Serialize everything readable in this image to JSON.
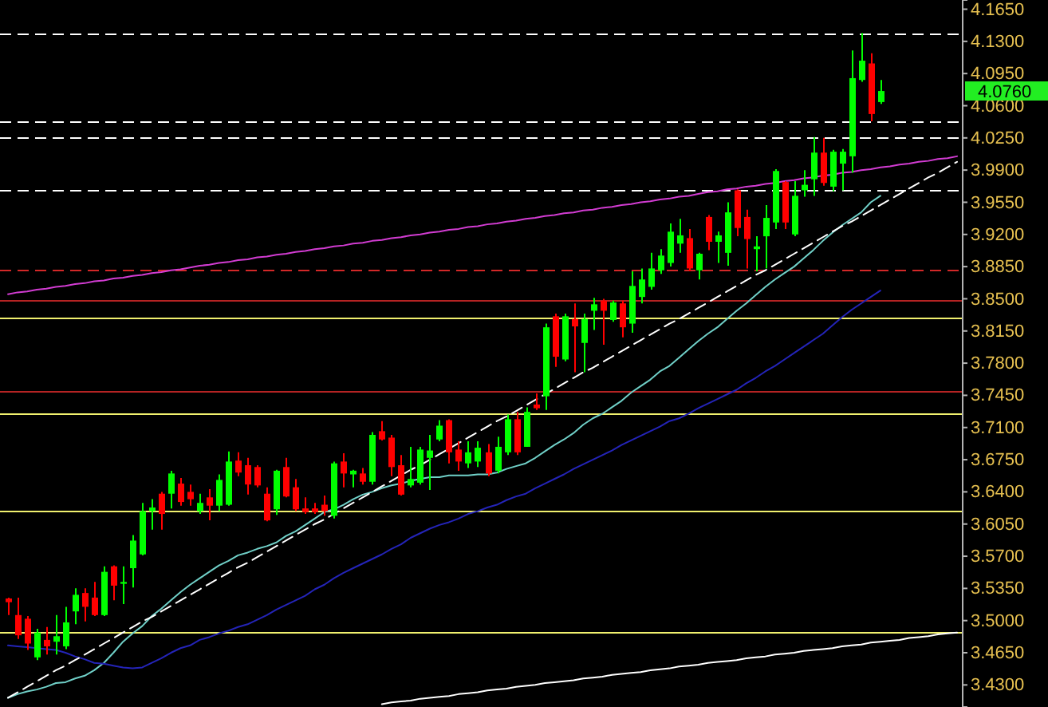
{
  "chart_data": {
    "type": "candlestick",
    "categories": [
      null,
      null,
      null,
      null,
      null,
      null,
      null,
      null,
      null,
      null,
      null,
      null,
      null,
      null,
      null,
      null,
      null,
      null,
      null,
      null,
      null,
      null,
      null,
      null,
      null,
      null,
      null,
      null,
      null,
      null,
      null,
      null,
      null,
      null,
      null,
      null,
      null,
      null,
      null,
      null,
      null,
      null,
      null,
      null,
      null,
      null,
      null,
      null,
      null,
      null,
      null,
      null,
      null,
      null,
      null,
      null,
      null,
      null,
      null,
      null,
      null,
      null,
      null,
      null,
      null,
      null,
      null,
      null,
      null,
      null,
      null,
      null,
      null,
      null,
      null,
      null,
      null,
      null,
      null,
      null,
      null,
      null,
      null,
      null,
      null,
      null,
      null,
      null,
      null,
      null,
      null,
      null,
      null,
      null,
      null,
      null,
      null,
      null,
      null,
      null
    ],
    "ohlc": [
      [
        3.524,
        3.525,
        3.506,
        3.52
      ],
      [
        3.506,
        3.525,
        3.48,
        3.484
      ],
      [
        3.502,
        3.505,
        3.468,
        3.475
      ],
      [
        3.46,
        3.491,
        3.457,
        3.487
      ],
      [
        3.479,
        3.493,
        3.463,
        3.472
      ],
      [
        3.477,
        3.506,
        3.463,
        3.483
      ],
      [
        3.472,
        3.515,
        3.469,
        3.498
      ],
      [
        3.51,
        3.535,
        3.496,
        3.528
      ],
      [
        3.53,
        3.535,
        3.499,
        3.515
      ],
      [
        3.525,
        3.542,
        3.505,
        3.506
      ],
      [
        3.506,
        3.559,
        3.505,
        3.553
      ],
      [
        3.559,
        3.56,
        3.522,
        3.538
      ],
      [
        3.54,
        3.559,
        3.518,
        3.542
      ],
      [
        3.557,
        3.593,
        3.536,
        3.587
      ],
      [
        3.572,
        3.628,
        3.571,
        3.619
      ],
      [
        3.619,
        3.632,
        3.599,
        3.623
      ],
      [
        3.638,
        3.64,
        3.599,
        3.616
      ],
      [
        3.638,
        3.663,
        3.622,
        3.66
      ],
      [
        3.649,
        3.655,
        3.625,
        3.629
      ],
      [
        3.64,
        3.648,
        3.625,
        3.632
      ],
      [
        3.619,
        3.638,
        3.616,
        3.628
      ],
      [
        3.634,
        3.643,
        3.609,
        3.625
      ],
      [
        3.625,
        3.659,
        3.619,
        3.653
      ],
      [
        3.626,
        3.684,
        3.625,
        3.673
      ],
      [
        3.674,
        3.683,
        3.657,
        3.661
      ],
      [
        3.669,
        3.677,
        3.637,
        3.648
      ],
      [
        3.667,
        3.669,
        3.645,
        3.647
      ],
      [
        3.638,
        3.645,
        3.608,
        3.609
      ],
      [
        3.621,
        3.664,
        3.615,
        3.663
      ],
      [
        3.667,
        3.677,
        3.634,
        3.635
      ],
      [
        3.645,
        3.654,
        3.619,
        3.621
      ],
      [
        3.622,
        3.634,
        3.616,
        3.618
      ],
      [
        3.622,
        3.628,
        3.616,
        3.618
      ],
      [
        3.626,
        3.636,
        3.614,
        3.619
      ],
      [
        3.614,
        3.673,
        3.611,
        3.671
      ],
      [
        3.673,
        3.682,
        3.645,
        3.66
      ],
      [
        3.659,
        3.664,
        3.645,
        3.663
      ],
      [
        3.66,
        3.666,
        3.648,
        3.651
      ],
      [
        3.651,
        3.705,
        3.648,
        3.702
      ],
      [
        3.706,
        3.717,
        3.696,
        3.697
      ],
      [
        3.699,
        3.702,
        3.657,
        3.667
      ],
      [
        3.669,
        3.68,
        3.636,
        3.637
      ],
      [
        3.647,
        3.689,
        3.645,
        3.654
      ],
      [
        3.65,
        3.689,
        3.648,
        3.686
      ],
      [
        3.677,
        3.702,
        3.642,
        3.685
      ],
      [
        3.697,
        3.718,
        3.695,
        3.712
      ],
      [
        3.718,
        3.719,
        3.671,
        3.683
      ],
      [
        3.686,
        3.695,
        3.663,
        3.673
      ],
      [
        3.671,
        3.695,
        3.666,
        3.683
      ],
      [
        3.673,
        3.695,
        3.667,
        3.688
      ],
      [
        3.683,
        3.692,
        3.657,
        3.66
      ],
      [
        3.663,
        3.7,
        3.66,
        3.689
      ],
      [
        3.683,
        3.724,
        3.68,
        3.719
      ],
      [
        3.719,
        3.727,
        3.68,
        3.683
      ],
      [
        3.689,
        3.732,
        3.689,
        3.727
      ],
      [
        3.735,
        3.747,
        3.729,
        3.731
      ],
      [
        3.744,
        3.823,
        3.729,
        3.819
      ],
      [
        3.831,
        3.834,
        3.776,
        3.787
      ],
      [
        3.784,
        3.834,
        3.782,
        3.831
      ],
      [
        3.828,
        3.845,
        3.77,
        3.82
      ],
      [
        3.802,
        3.834,
        3.77,
        3.828
      ],
      [
        3.837,
        3.851,
        3.816,
        3.844
      ],
      [
        3.848,
        3.85,
        3.8,
        3.837
      ],
      [
        3.827,
        3.848,
        3.825,
        3.846
      ],
      [
        3.845,
        3.848,
        3.808,
        3.819
      ],
      [
        3.823,
        3.88,
        3.813,
        3.864
      ],
      [
        3.852,
        3.883,
        3.845,
        3.871
      ],
      [
        3.863,
        3.9,
        3.86,
        3.883
      ],
      [
        3.881,
        3.904,
        3.877,
        3.897
      ],
      [
        3.889,
        3.932,
        3.885,
        3.923
      ],
      [
        3.91,
        3.937,
        3.9,
        3.919
      ],
      [
        3.916,
        3.926,
        3.88,
        3.883
      ],
      [
        3.881,
        3.9,
        3.871,
        3.899
      ],
      [
        3.939,
        3.941,
        3.903,
        3.912
      ],
      [
        3.912,
        3.923,
        3.889,
        3.919
      ],
      [
        3.9,
        3.955,
        3.886,
        3.944
      ],
      [
        3.968,
        3.969,
        3.918,
        3.927
      ],
      [
        3.939,
        3.947,
        3.883,
        3.915
      ],
      [
        3.904,
        3.918,
        3.88,
        3.907
      ],
      [
        3.918,
        3.952,
        3.883,
        3.938
      ],
      [
        3.933,
        3.991,
        3.926,
        3.989
      ],
      [
        3.977,
        3.978,
        3.926,
        3.933
      ],
      [
        3.92,
        3.978,
        3.918,
        3.962
      ],
      [
        3.968,
        3.99,
        3.961,
        3.974
      ],
      [
        3.98,
        4.026,
        3.962,
        4.009
      ],
      [
        4.009,
        4.025,
        3.973,
        3.976
      ],
      [
        3.972,
        4.012,
        3.967,
        4.01
      ],
      [
        3.997,
        4.013,
        3.968,
        4.01
      ],
      [
        4.005,
        4.12,
        3.987,
        4.09
      ],
      [
        4.088,
        4.139,
        4.086,
        4.109
      ],
      [
        4.106,
        4.117,
        4.043,
        4.051
      ],
      [
        4.064,
        4.088,
        4.062,
        4.076
      ],
      null,
      null,
      null,
      null,
      null,
      null,
      null,
      null
    ],
    "colors": [
      "#ff0000",
      "#ff0000",
      "#ff0000",
      "#00ff00",
      "#ff0000",
      "#00ff00",
      "#00ff00",
      "#00ff00",
      "#ff0000",
      "#ff0000",
      "#00ff00",
      "#ff0000",
      "#00ff00",
      "#00ff00",
      "#00ff00",
      "#00ff00",
      "#ff0000",
      "#00ff00",
      "#ff0000",
      "#ff0000",
      "#00ff00",
      "#ff0000",
      "#00ff00",
      "#00ff00",
      "#ff0000",
      "#ff0000",
      "#ff0000",
      "#ff0000",
      "#00ff00",
      "#ff0000",
      "#ff0000",
      "#ff0000",
      "#ff0000",
      "#ff0000",
      "#00ff00",
      "#ff0000",
      "#00ff00",
      "#ff0000",
      "#00ff00",
      "#ff0000",
      "#ff0000",
      "#ff0000",
      "#00ff00",
      "#00ff00",
      "#00ff00",
      "#00ff00",
      "#ff0000",
      "#ff0000",
      "#00ff00",
      "#00ff00",
      "#ff0000",
      "#00ff00",
      "#00ff00",
      "#ff0000",
      "#00ff00",
      "#ff0000",
      "#00ff00",
      "#ff0000",
      "#00ff00",
      "#ff0000",
      "#00ff00",
      "#00ff00",
      "#ff0000",
      "#00ff00",
      "#ff0000",
      "#00ff00",
      "#00ff00",
      "#00ff00",
      "#00ff00",
      "#00ff00",
      "#00ff00",
      "#ff0000",
      "#00ff00",
      "#ff0000",
      "#00ff00",
      "#00ff00",
      "#ff0000",
      "#ff0000",
      "#00ff00",
      "#00ff00",
      "#00ff00",
      "#ff0000",
      "#00ff00",
      "#00ff00",
      "#00ff00",
      "#ff0000",
      "#00ff00",
      "#00ff00",
      "#00ff00",
      "#00ff00",
      "#ff0000",
      "#00ff00",
      null,
      null,
      null,
      null,
      null,
      null,
      null,
      null
    ],
    "series": [
      {
        "type": "line",
        "color": "#70d0c8",
        "values": [
          3.416,
          3.42,
          3.423,
          3.425,
          3.428,
          3.432,
          3.433,
          3.437,
          3.44,
          3.446,
          3.454,
          3.465,
          3.477,
          3.486,
          3.494,
          3.505,
          3.513,
          3.522,
          3.531,
          3.539,
          3.546,
          3.553,
          3.56,
          3.565,
          3.571,
          3.574,
          3.578,
          3.581,
          3.585,
          3.592,
          3.597,
          3.604,
          3.611,
          3.618,
          3.621,
          3.626,
          3.632,
          3.637,
          3.64,
          3.644,
          3.647,
          3.649,
          3.652,
          3.654,
          3.656,
          3.656,
          3.658,
          3.658,
          3.658,
          3.659,
          3.659,
          3.661,
          3.665,
          3.668,
          3.671,
          3.677,
          3.684,
          3.691,
          3.697,
          3.704,
          3.713,
          3.72,
          3.725,
          3.732,
          3.739,
          3.748,
          3.755,
          3.762,
          3.771,
          3.777,
          3.786,
          3.795,
          3.804,
          3.812,
          3.819,
          3.828,
          3.837,
          3.845,
          3.854,
          3.863,
          3.871,
          3.878,
          3.885,
          3.894,
          3.903,
          3.913,
          3.922,
          3.93,
          3.937,
          3.944,
          3.955,
          3.962,
          null,
          null,
          null,
          null,
          null,
          null,
          null,
          null
        ]
      },
      {
        "type": "line",
        "color": "#2424b8",
        "values": [
          3.473,
          3.472,
          3.471,
          3.47,
          3.469,
          3.468,
          3.465,
          3.461,
          3.458,
          3.454,
          3.453,
          3.451,
          3.449,
          3.448,
          3.449,
          3.454,
          3.459,
          3.465,
          3.47,
          3.473,
          3.479,
          3.482,
          3.486,
          3.489,
          3.493,
          3.496,
          3.501,
          3.506,
          3.512,
          3.517,
          3.522,
          3.527,
          3.534,
          3.539,
          3.546,
          3.552,
          3.557,
          3.562,
          3.567,
          3.572,
          3.578,
          3.583,
          3.59,
          3.595,
          3.6,
          3.604,
          3.607,
          3.611,
          3.616,
          3.619,
          3.623,
          3.626,
          3.631,
          3.635,
          3.638,
          3.644,
          3.649,
          3.654,
          3.659,
          3.665,
          3.67,
          3.675,
          3.68,
          3.685,
          3.691,
          3.696,
          3.701,
          3.706,
          3.711,
          3.717,
          3.72,
          3.725,
          3.731,
          3.736,
          3.741,
          3.746,
          3.751,
          3.758,
          3.764,
          3.771,
          3.777,
          3.784,
          3.791,
          3.798,
          3.805,
          3.812,
          3.821,
          3.83,
          3.838,
          3.845,
          3.852,
          3.859,
          null,
          null,
          null,
          null,
          null,
          null,
          null,
          null
        ]
      },
      {
        "type": "line",
        "color": "#d23cd2",
        "values": [
          3.855,
          3.857,
          3.858,
          3.86,
          3.861,
          3.863,
          3.864,
          3.866,
          3.867,
          3.869,
          3.87,
          3.872,
          3.873,
          3.875,
          3.876,
          3.878,
          3.879,
          3.881,
          3.882,
          3.884,
          3.886,
          3.887,
          3.889,
          3.89,
          3.892,
          3.893,
          3.895,
          3.896,
          3.898,
          3.899,
          3.901,
          3.902,
          3.904,
          3.905,
          3.907,
          3.908,
          3.91,
          3.911,
          3.913,
          3.914,
          3.916,
          3.917,
          3.919,
          3.92,
          3.922,
          3.923,
          3.925,
          3.926,
          3.928,
          3.929,
          3.931,
          3.932,
          3.934,
          3.935,
          3.937,
          3.938,
          3.94,
          3.941,
          3.943,
          3.944,
          3.946,
          3.947,
          3.949,
          3.95,
          3.952,
          3.953,
          3.955,
          3.956,
          3.958,
          3.959,
          3.961,
          3.962,
          3.964,
          3.966,
          3.967,
          3.969,
          3.97,
          3.972,
          3.973,
          3.975,
          3.976,
          3.978,
          3.979,
          3.981,
          3.982,
          3.984,
          3.985,
          3.987,
          3.988,
          3.99,
          3.991,
          3.993,
          3.994,
          3.996,
          3.997,
          3.999,
          4.0,
          4.002,
          4.003,
          4.005
        ]
      },
      {
        "type": "line",
        "color": "#ffffff",
        "line_style": "dashed",
        "values": [
          3.416,
          3.422,
          3.428,
          3.434,
          3.44,
          3.446,
          3.451,
          3.457,
          3.463,
          3.469,
          3.475,
          3.481,
          3.487,
          3.493,
          3.499,
          3.504,
          3.51,
          3.516,
          3.522,
          3.528,
          3.534,
          3.54,
          3.546,
          3.552,
          3.558,
          3.563,
          3.569,
          3.575,
          3.581,
          3.587,
          3.593,
          3.599,
          3.605,
          3.61,
          3.616,
          3.622,
          3.628,
          3.634,
          3.64,
          3.646,
          3.652,
          3.658,
          3.664,
          3.669,
          3.675,
          3.681,
          3.687,
          3.693,
          3.699,
          3.705,
          3.711,
          3.717,
          3.722,
          3.728,
          3.734,
          3.74,
          3.746,
          3.752,
          3.758,
          3.764,
          3.77,
          3.775,
          3.781,
          3.787,
          3.793,
          3.799,
          3.805,
          3.811,
          3.817,
          3.823,
          3.828,
          3.834,
          3.84,
          3.846,
          3.852,
          3.858,
          3.864,
          3.87,
          3.876,
          3.881,
          3.887,
          3.893,
          3.899,
          3.905,
          3.911,
          3.917,
          3.923,
          3.929,
          3.934,
          3.94,
          3.946,
          3.952,
          3.958,
          3.964,
          3.97,
          3.976,
          3.982,
          3.987,
          3.993,
          3.999
        ]
      },
      {
        "type": "line",
        "color": "#ffffff",
        "values": [
          null,
          null,
          null,
          null,
          null,
          null,
          null,
          null,
          null,
          null,
          null,
          null,
          null,
          null,
          null,
          null,
          null,
          null,
          null,
          null,
          null,
          null,
          null,
          null,
          null,
          null,
          null,
          null,
          null,
          null,
          null,
          null,
          null,
          null,
          null,
          null,
          null,
          null,
          null,
          3.409,
          3.411,
          3.412,
          3.413,
          3.415,
          3.416,
          3.417,
          3.418,
          3.42,
          3.421,
          3.422,
          3.424,
          3.425,
          3.426,
          3.428,
          3.429,
          3.43,
          3.432,
          3.433,
          3.434,
          3.435,
          3.437,
          3.438,
          3.439,
          3.441,
          3.442,
          3.443,
          3.444,
          3.446,
          3.447,
          3.448,
          3.45,
          3.451,
          3.452,
          3.454,
          3.455,
          3.456,
          3.457,
          3.459,
          3.46,
          3.461,
          3.463,
          3.464,
          3.465,
          3.467,
          3.468,
          3.469,
          3.47,
          3.472,
          3.473,
          3.474,
          3.476,
          3.477,
          3.478,
          3.479,
          3.481,
          3.482,
          3.483,
          3.485,
          3.486,
          3.487
        ]
      }
    ],
    "ylim": [
      3.406,
      4.175
    ],
    "yticks": [
      {
        "value": 3.43,
        "label": "3.4300"
      },
      {
        "value": 3.465,
        "label": "3.4650"
      },
      {
        "value": 3.5,
        "label": "3.5000"
      },
      {
        "value": 3.535,
        "label": "3.5350"
      },
      {
        "value": 3.57,
        "label": "3.5700"
      },
      {
        "value": 3.605,
        "label": "3.6050"
      },
      {
        "value": 3.64,
        "label": "3.6400"
      },
      {
        "value": 3.675,
        "label": "3.6750"
      },
      {
        "value": 3.71,
        "label": "3.7100"
      },
      {
        "value": 3.745,
        "label": "3.7450"
      },
      {
        "value": 3.78,
        "label": "3.7800"
      },
      {
        "value": 3.815,
        "label": "3.8150"
      },
      {
        "value": 3.85,
        "label": "3.8500"
      },
      {
        "value": 3.885,
        "label": "3.8850"
      },
      {
        "value": 3.92,
        "label": "3.9200"
      },
      {
        "value": 3.955,
        "label": "3.9550"
      },
      {
        "value": 3.99,
        "label": "3.9900"
      },
      {
        "value": 4.025,
        "label": "4.0250"
      },
      {
        "value": 4.06,
        "label": "4.0600"
      },
      {
        "value": 4.095,
        "label": "4.0950"
      },
      {
        "value": 4.13,
        "label": "4.1300"
      },
      {
        "value": 4.165,
        "label": "4.1650"
      }
    ],
    "tick_labels": "y",
    "ref_lines": [
      {
        "axis": "y",
        "value": 4.139,
        "color": "#ffffff",
        "line_style": "dashed"
      },
      {
        "axis": "y",
        "value": 4.043,
        "color": "#ffffff",
        "line_style": "dashed"
      },
      {
        "axis": "y",
        "value": 4.026,
        "color": "#ffffff",
        "line_style": "dashed"
      },
      {
        "axis": "y",
        "value": 3.969,
        "color": "#ffffff",
        "line_style": "dashed"
      },
      {
        "axis": "y",
        "value": 3.882,
        "color": "#d22828",
        "line_style": "dashed"
      },
      {
        "axis": "y",
        "value": 3.849,
        "color": "#b42323"
      },
      {
        "axis": "y",
        "value": 3.83,
        "color": "#f0f06e"
      },
      {
        "axis": "y",
        "value": 3.749,
        "color": "#b42323"
      },
      {
        "axis": "y",
        "value": 3.725,
        "color": "#f0f06e"
      },
      {
        "axis": "y",
        "value": 3.619,
        "color": "#f0f06e"
      },
      {
        "axis": "y",
        "value": 3.487,
        "color": "#f0f06e"
      }
    ],
    "annotations": [
      "4.0760"
    ]
  }
}
